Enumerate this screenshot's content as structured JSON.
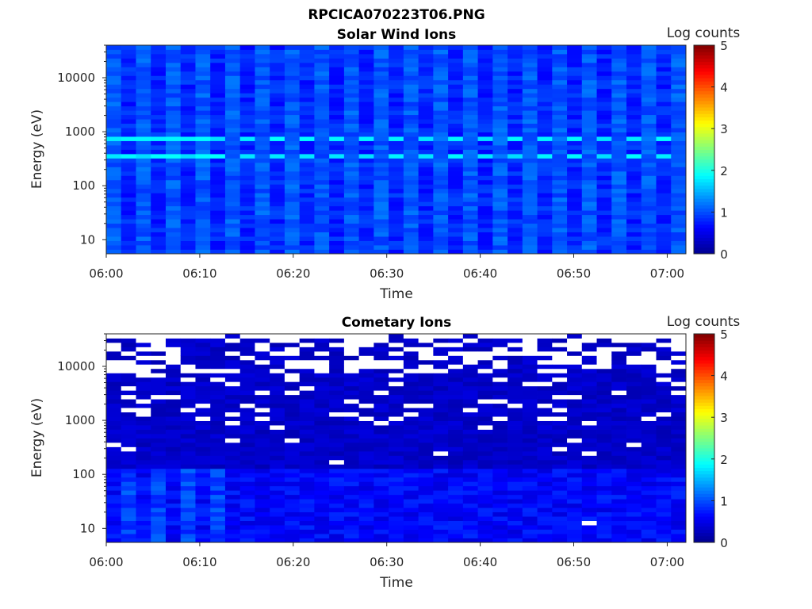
{
  "figure_title": "RPCICA070223T06.PNG",
  "colors": {
    "colormap": [
      "#00008f",
      "#0000ff",
      "#00ffff",
      "#ffff00",
      "#ff0000",
      "#800000"
    ],
    "missing": "#ffffff"
  },
  "chart_data": [
    {
      "type": "heatmap",
      "title": "Solar Wind Ions",
      "xlabel": "Time",
      "ylabel": "Energy (eV)",
      "x_ticks": [
        "06:00",
        "06:10",
        "06:20",
        "06:30",
        "06:40",
        "06:50",
        "07:00"
      ],
      "x_range": [
        "06:00",
        "07:02"
      ],
      "y_scale": "log",
      "y_ticks": [
        "10",
        "100",
        "1000",
        "10000"
      ],
      "y_range": [
        5.5,
        40000
      ],
      "colorbar": {
        "label": "Log counts",
        "range": [
          0,
          5
        ],
        "ticks": [
          "0",
          "1",
          "2",
          "3",
          "4",
          "5"
        ]
      },
      "columns": 39,
      "energy_bins": 48,
      "description_of_values": "Mostly 0.6-1.3 log counts; enhanced lines near 700 eV and 330 eV reaching ~1.8",
      "peak_bands_eV": [
        700,
        330
      ],
      "peak_level": 1.8,
      "background_level": 0.9
    },
    {
      "type": "heatmap",
      "title": "Cometary Ions",
      "xlabel": "Time",
      "ylabel": "Energy (eV)",
      "x_ticks": [
        "06:00",
        "06:10",
        "06:20",
        "06:30",
        "06:40",
        "06:50",
        "07:00"
      ],
      "x_range": [
        "06:00",
        "07:02"
      ],
      "y_scale": "log",
      "y_ticks": [
        "10",
        "100",
        "1000",
        "10000"
      ],
      "y_range": [
        5.5,
        40000
      ],
      "colorbar": {
        "label": "Log counts",
        "range": [
          0,
          5
        ],
        "ticks": [
          "0",
          "1",
          "2",
          "3",
          "4",
          "5"
        ]
      },
      "columns": 39,
      "energy_bins": 48,
      "background_level": 0.2,
      "low_energy_level": 0.7,
      "missing_value_color": "white"
    }
  ]
}
